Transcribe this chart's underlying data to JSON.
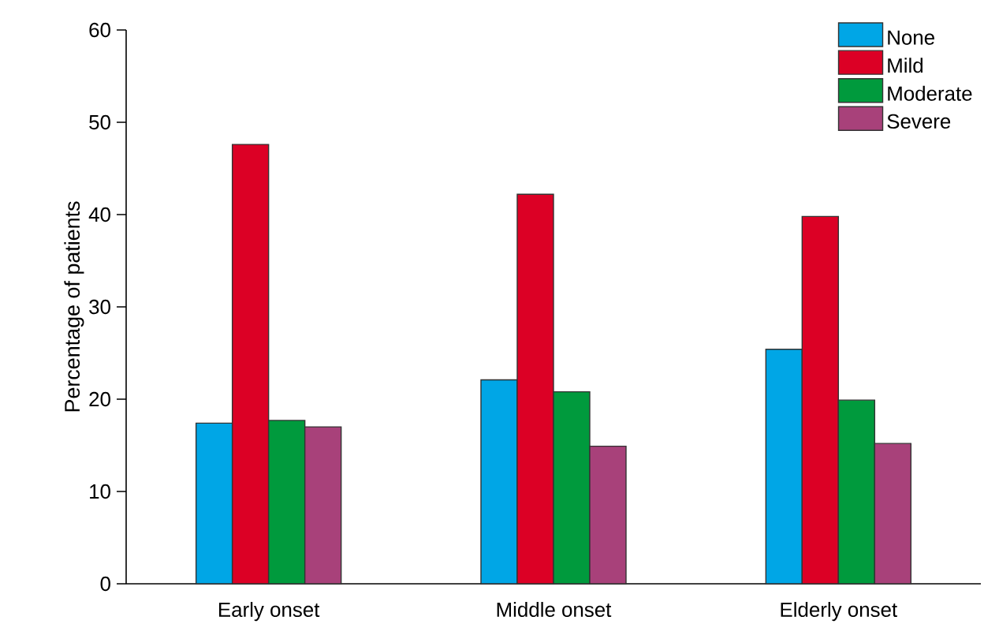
{
  "chart_data": {
    "type": "bar",
    "ylabel": "Percentage of patients",
    "categories": [
      "Early onset",
      "Middle onset",
      "Elderly onset"
    ],
    "series": [
      {
        "name": "None",
        "color": "#00a6e6",
        "values": [
          17.4,
          22.1,
          25.4
        ]
      },
      {
        "name": "Mild",
        "color": "#dc0025",
        "values": [
          47.6,
          42.2,
          39.8
        ]
      },
      {
        "name": "Moderate",
        "color": "#009a3d",
        "values": [
          17.7,
          20.8,
          19.9
        ]
      },
      {
        "name": "Severe",
        "color": "#a8417a",
        "values": [
          17.0,
          14.9,
          15.2
        ]
      }
    ],
    "ylim": [
      0,
      60
    ],
    "yticks": [
      0,
      10,
      20,
      30,
      40,
      50,
      60
    ],
    "legend": "top right"
  }
}
